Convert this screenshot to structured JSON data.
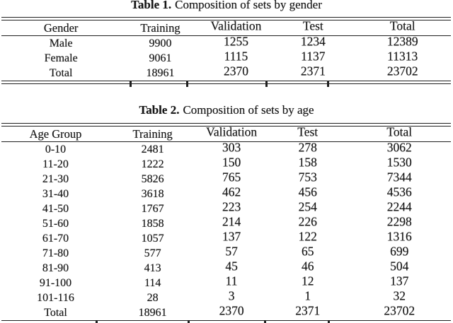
{
  "colors": {
    "text": "#161616",
    "rule": "#1f1f1f",
    "background": "#ffffff"
  },
  "tables": [
    {
      "title_label": "Table 1.",
      "title_text": "Composition of sets by gender",
      "columns": [
        "Gender",
        "Training",
        "Validation",
        "Test",
        "Total"
      ],
      "rows": [
        [
          "Male",
          "9900",
          "1255",
          "1234",
          "12389"
        ],
        [
          "Female",
          "9061",
          "1115",
          "1137",
          "11313"
        ],
        [
          "Total",
          "18961",
          "2370",
          "2371",
          "23702"
        ]
      ]
    },
    {
      "title_label": "Table 2.",
      "title_text": "Composition of sets by age",
      "columns": [
        "Age Group",
        "Training",
        "Validation",
        "Test",
        "Total"
      ],
      "rows": [
        [
          "0-10",
          "2481",
          "303",
          "278",
          "3062"
        ],
        [
          "11-20",
          "1222",
          "150",
          "158",
          "1530"
        ],
        [
          "21-30",
          "5826",
          "765",
          "753",
          "7344"
        ],
        [
          "31-40",
          "3618",
          "462",
          "456",
          "4536"
        ],
        [
          "41-50",
          "1767",
          "223",
          "254",
          "2244"
        ],
        [
          "51-60",
          "1858",
          "214",
          "226",
          "2298"
        ],
        [
          "61-70",
          "1057",
          "137",
          "122",
          "1316"
        ],
        [
          "71-80",
          "577",
          "57",
          "65",
          "699"
        ],
        [
          "81-90",
          "413",
          "45",
          "46",
          "504"
        ],
        [
          "91-100",
          "114",
          "11",
          "12",
          "137"
        ],
        [
          "101-116",
          "28",
          "3",
          "1",
          "32"
        ],
        [
          "Total",
          "18961",
          "2370",
          "2371",
          "23702"
        ]
      ]
    }
  ]
}
